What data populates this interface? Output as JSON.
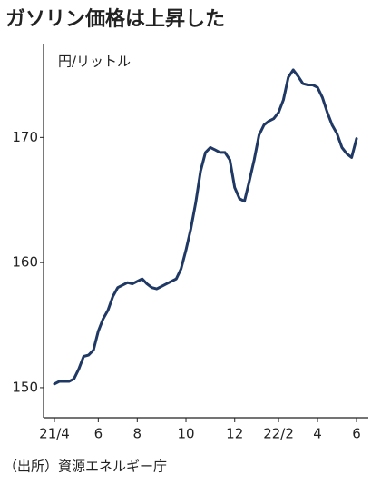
{
  "chart_data": {
    "type": "line",
    "title": "ガソリン価格は上昇した",
    "unit": "円/リットル",
    "source": "（出所）資源エネルギー庁",
    "categories": [
      "21/4",
      null,
      null,
      null,
      null,
      null,
      null,
      null,
      null,
      "6",
      null,
      null,
      null,
      null,
      null,
      null,
      null,
      "8",
      null,
      null,
      null,
      null,
      null,
      null,
      null,
      null,
      null,
      "10",
      null,
      null,
      null,
      null,
      null,
      null,
      null,
      null,
      null,
      "12",
      null,
      null,
      null,
      null,
      null,
      null,
      null,
      null,
      "22/2",
      null,
      null,
      null,
      null,
      null,
      null,
      null,
      "4",
      null,
      null,
      null,
      null,
      null,
      null,
      null,
      "6"
    ],
    "series": [
      {
        "name": "ガソリン価格",
        "color": "#1f3864",
        "values": [
          150.3,
          150.5,
          150.5,
          150.5,
          150.7,
          151.5,
          152.5,
          152.6,
          153.0,
          154.5,
          155.5,
          156.2,
          157.3,
          158.0,
          158.2,
          158.4,
          158.3,
          158.5,
          158.7,
          158.3,
          158.0,
          157.9,
          158.1,
          158.3,
          158.5,
          158.7,
          159.5,
          161.0,
          162.7,
          164.8,
          167.3,
          168.8,
          169.2,
          169.0,
          168.8,
          168.8,
          168.2,
          166.0,
          165.1,
          164.9,
          166.5,
          168.2,
          170.2,
          171.0,
          171.3,
          171.5,
          172.0,
          173.0,
          174.8,
          175.4,
          174.9,
          174.3,
          174.2,
          174.2,
          174.0,
          173.2,
          172.0,
          171.0,
          170.3,
          169.2,
          168.7,
          168.4,
          169.9
        ]
      }
    ],
    "ylim": [
      147.6,
      177.5
    ],
    "yticks": [
      150,
      160,
      170
    ],
    "grid": false
  }
}
